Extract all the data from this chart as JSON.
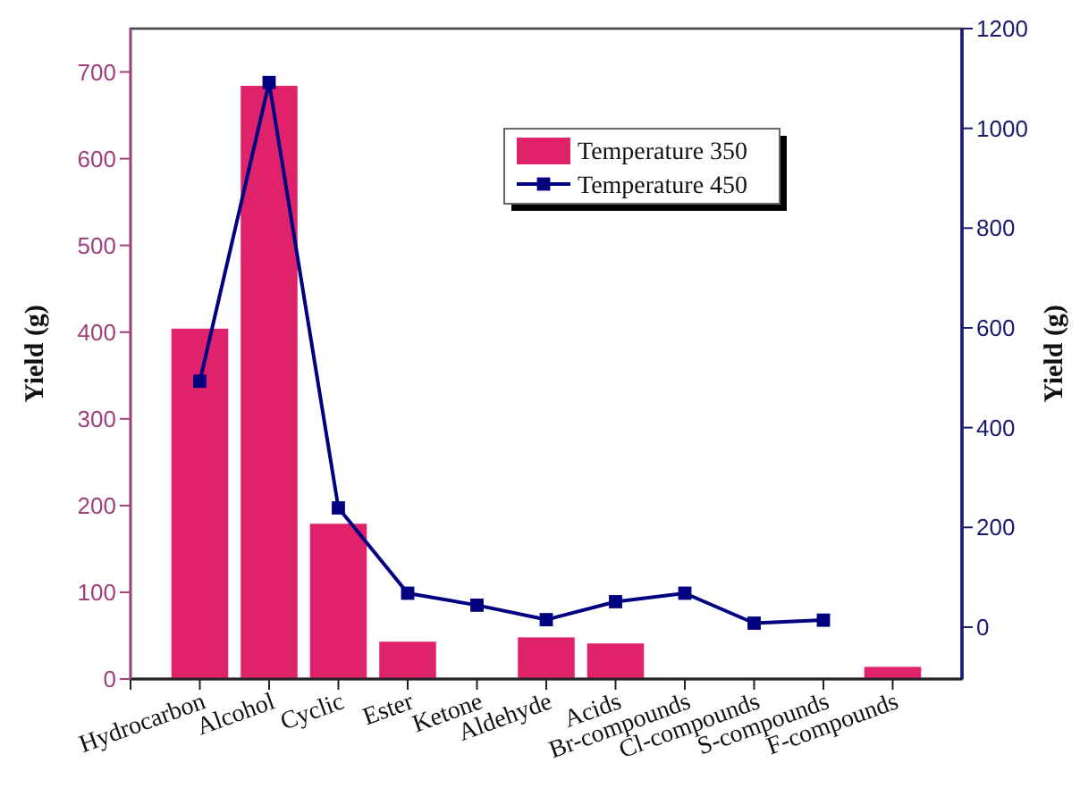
{
  "chart_data": {
    "type": "bar",
    "ylabel": "Yield (g)",
    "y2label": "Yield (g)",
    "categories": [
      "Hydrocarbon",
      "Alcohol",
      "Cyclic",
      "Ester",
      "Ketone",
      "Aldehyde",
      "Acids",
      "Br-compounds",
      "Cl-compounds",
      "S-compounds",
      "F-compounds"
    ],
    "series": [
      {
        "name": "Temperature 350",
        "color": "#e0226a",
        "values": [
          404,
          684,
          179,
          43,
          1,
          48,
          41,
          null,
          null,
          null,
          14
        ]
      },
      {
        "name": "Temperature 450",
        "type": "line",
        "axis": "y2",
        "color": "#000080",
        "marker": "square",
        "values": [
          493,
          1092,
          239,
          68,
          44,
          15,
          51,
          68,
          8,
          14,
          null
        ]
      }
    ],
    "ylim": [
      0,
      750
    ],
    "yticks": [
      0,
      100,
      200,
      300,
      400,
      500,
      600,
      700
    ],
    "y2lim": [
      -104,
      1200
    ],
    "y2ticks": [
      0,
      200,
      400,
      600,
      800,
      1000,
      1200
    ],
    "legend": "top right",
    "grid": false
  }
}
